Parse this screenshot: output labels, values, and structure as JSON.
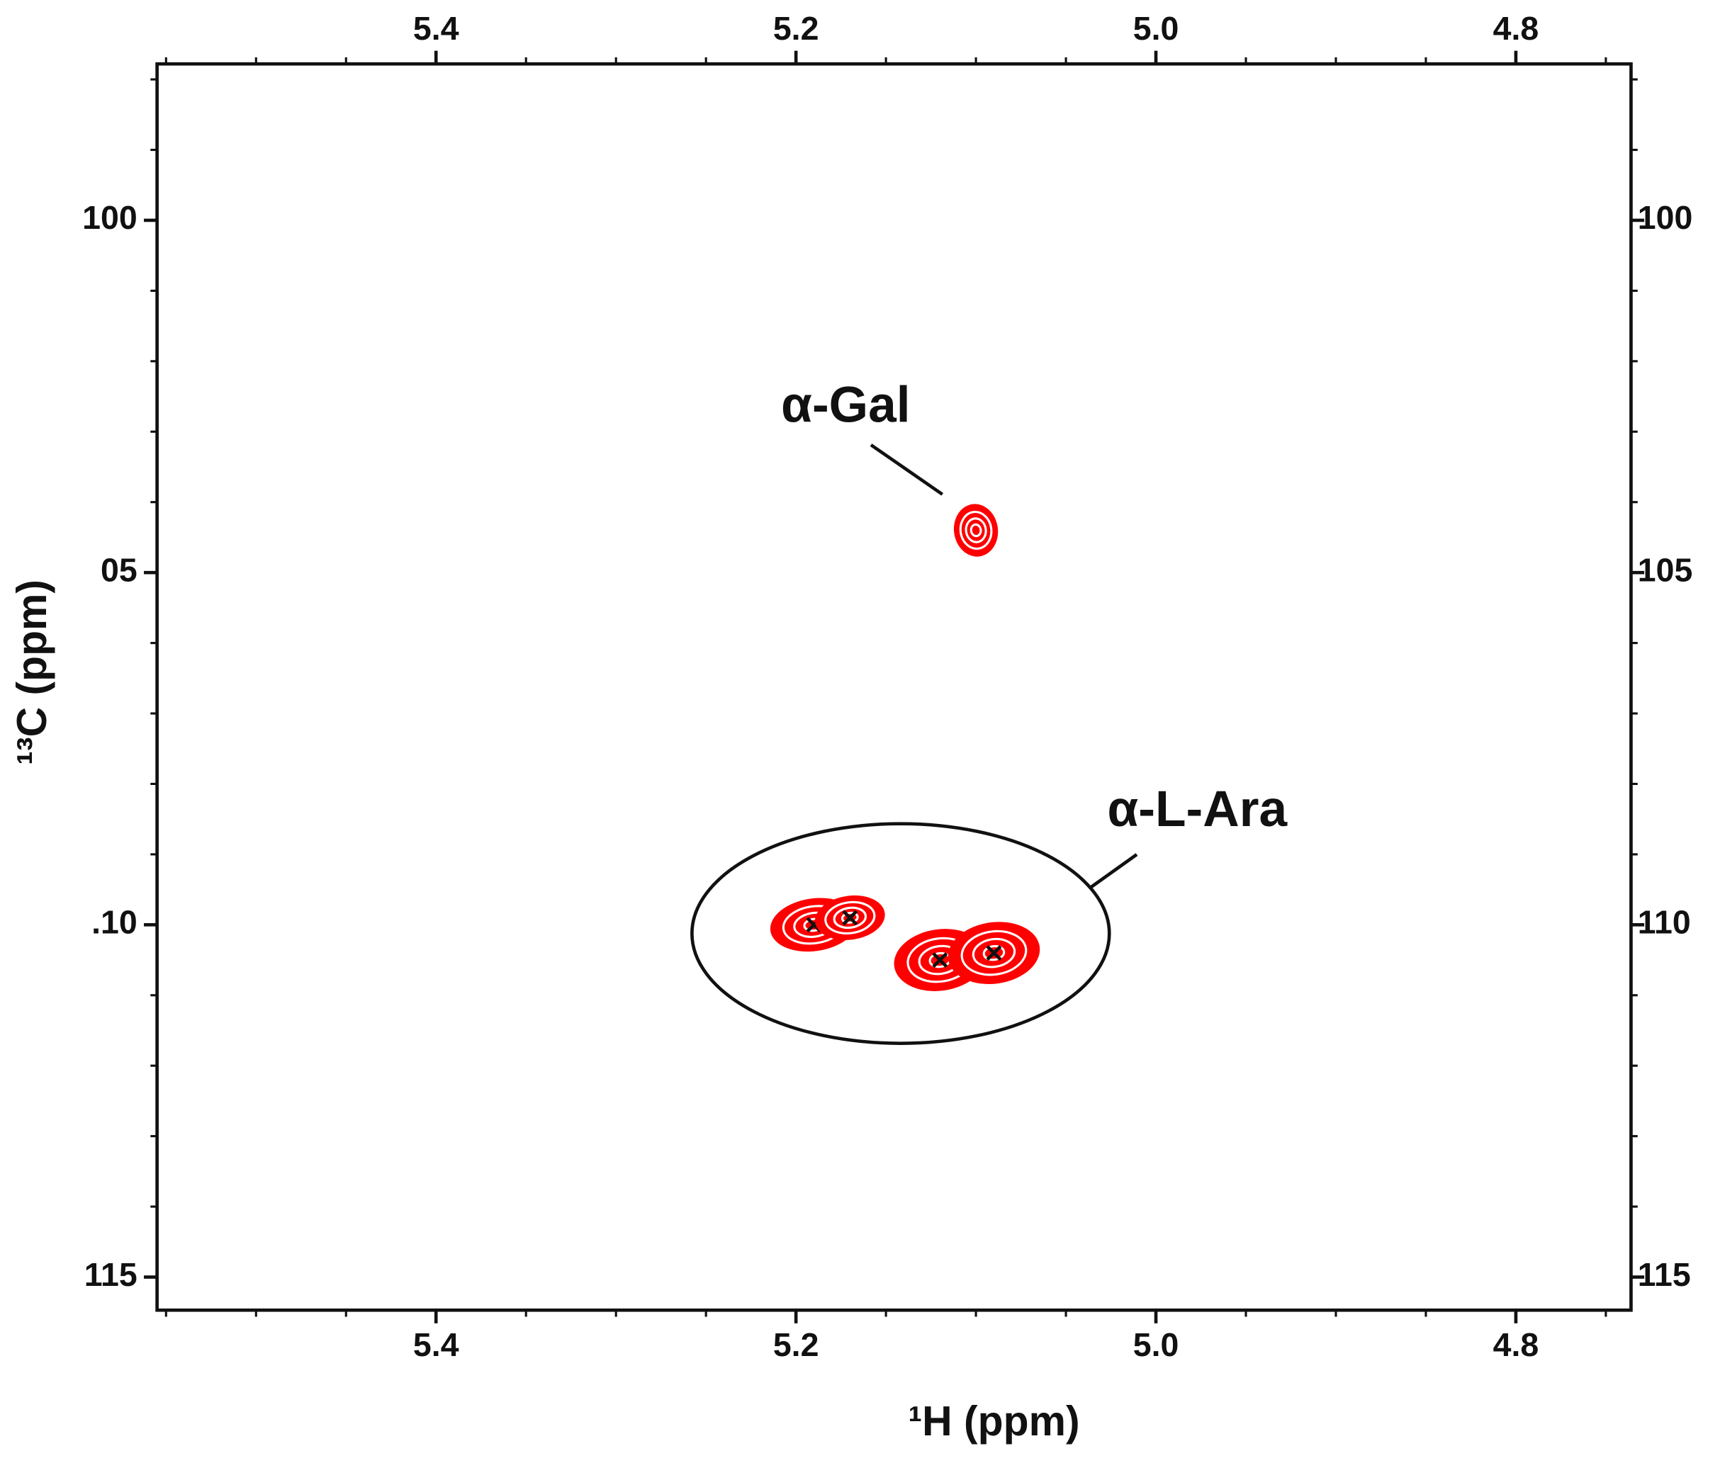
{
  "chart_data": {
    "type": "scatter",
    "x_label": "¹H (ppm)",
    "y_label": "¹³C (ppm)",
    "x": [
      5.1,
      5.19,
      5.17,
      5.12,
      5.09
    ],
    "y": [
      104.4,
      110.0,
      109.9,
      110.5,
      110.4
    ],
    "crosshair": [
      false,
      true,
      true,
      true,
      true
    ],
    "color": "#ff0000",
    "xlim": [
      5.555,
      4.736
    ],
    "ylim": [
      97.78,
      115.47
    ],
    "xticks": [
      5.4,
      5.2,
      {
        "value": 5.0,
        "label": "5.0"
      },
      4.8
    ],
    "xminor_ticks": [
      5.55,
      5.5,
      5.45,
      5.35,
      5.3,
      5.25,
      5.15,
      5.1,
      5.05,
      4.95,
      4.9,
      4.85,
      4.75
    ],
    "yticks": [
      100,
      {
        "value": 105,
        "label": "05"
      },
      {
        "value": 110,
        "label": ".10"
      },
      115
    ],
    "y2lim": [
      97.78,
      115.47
    ],
    "y2ticks": [
      100,
      105,
      110,
      115
    ],
    "yminor_ticks": [
      98,
      99,
      101,
      102,
      103,
      104,
      106,
      107,
      108,
      109,
      111,
      112,
      113,
      114
    ],
    "annotations": [
      {
        "text": "α-Gal"
      },
      {
        "text": "α-L-Ara"
      }
    ]
  }
}
